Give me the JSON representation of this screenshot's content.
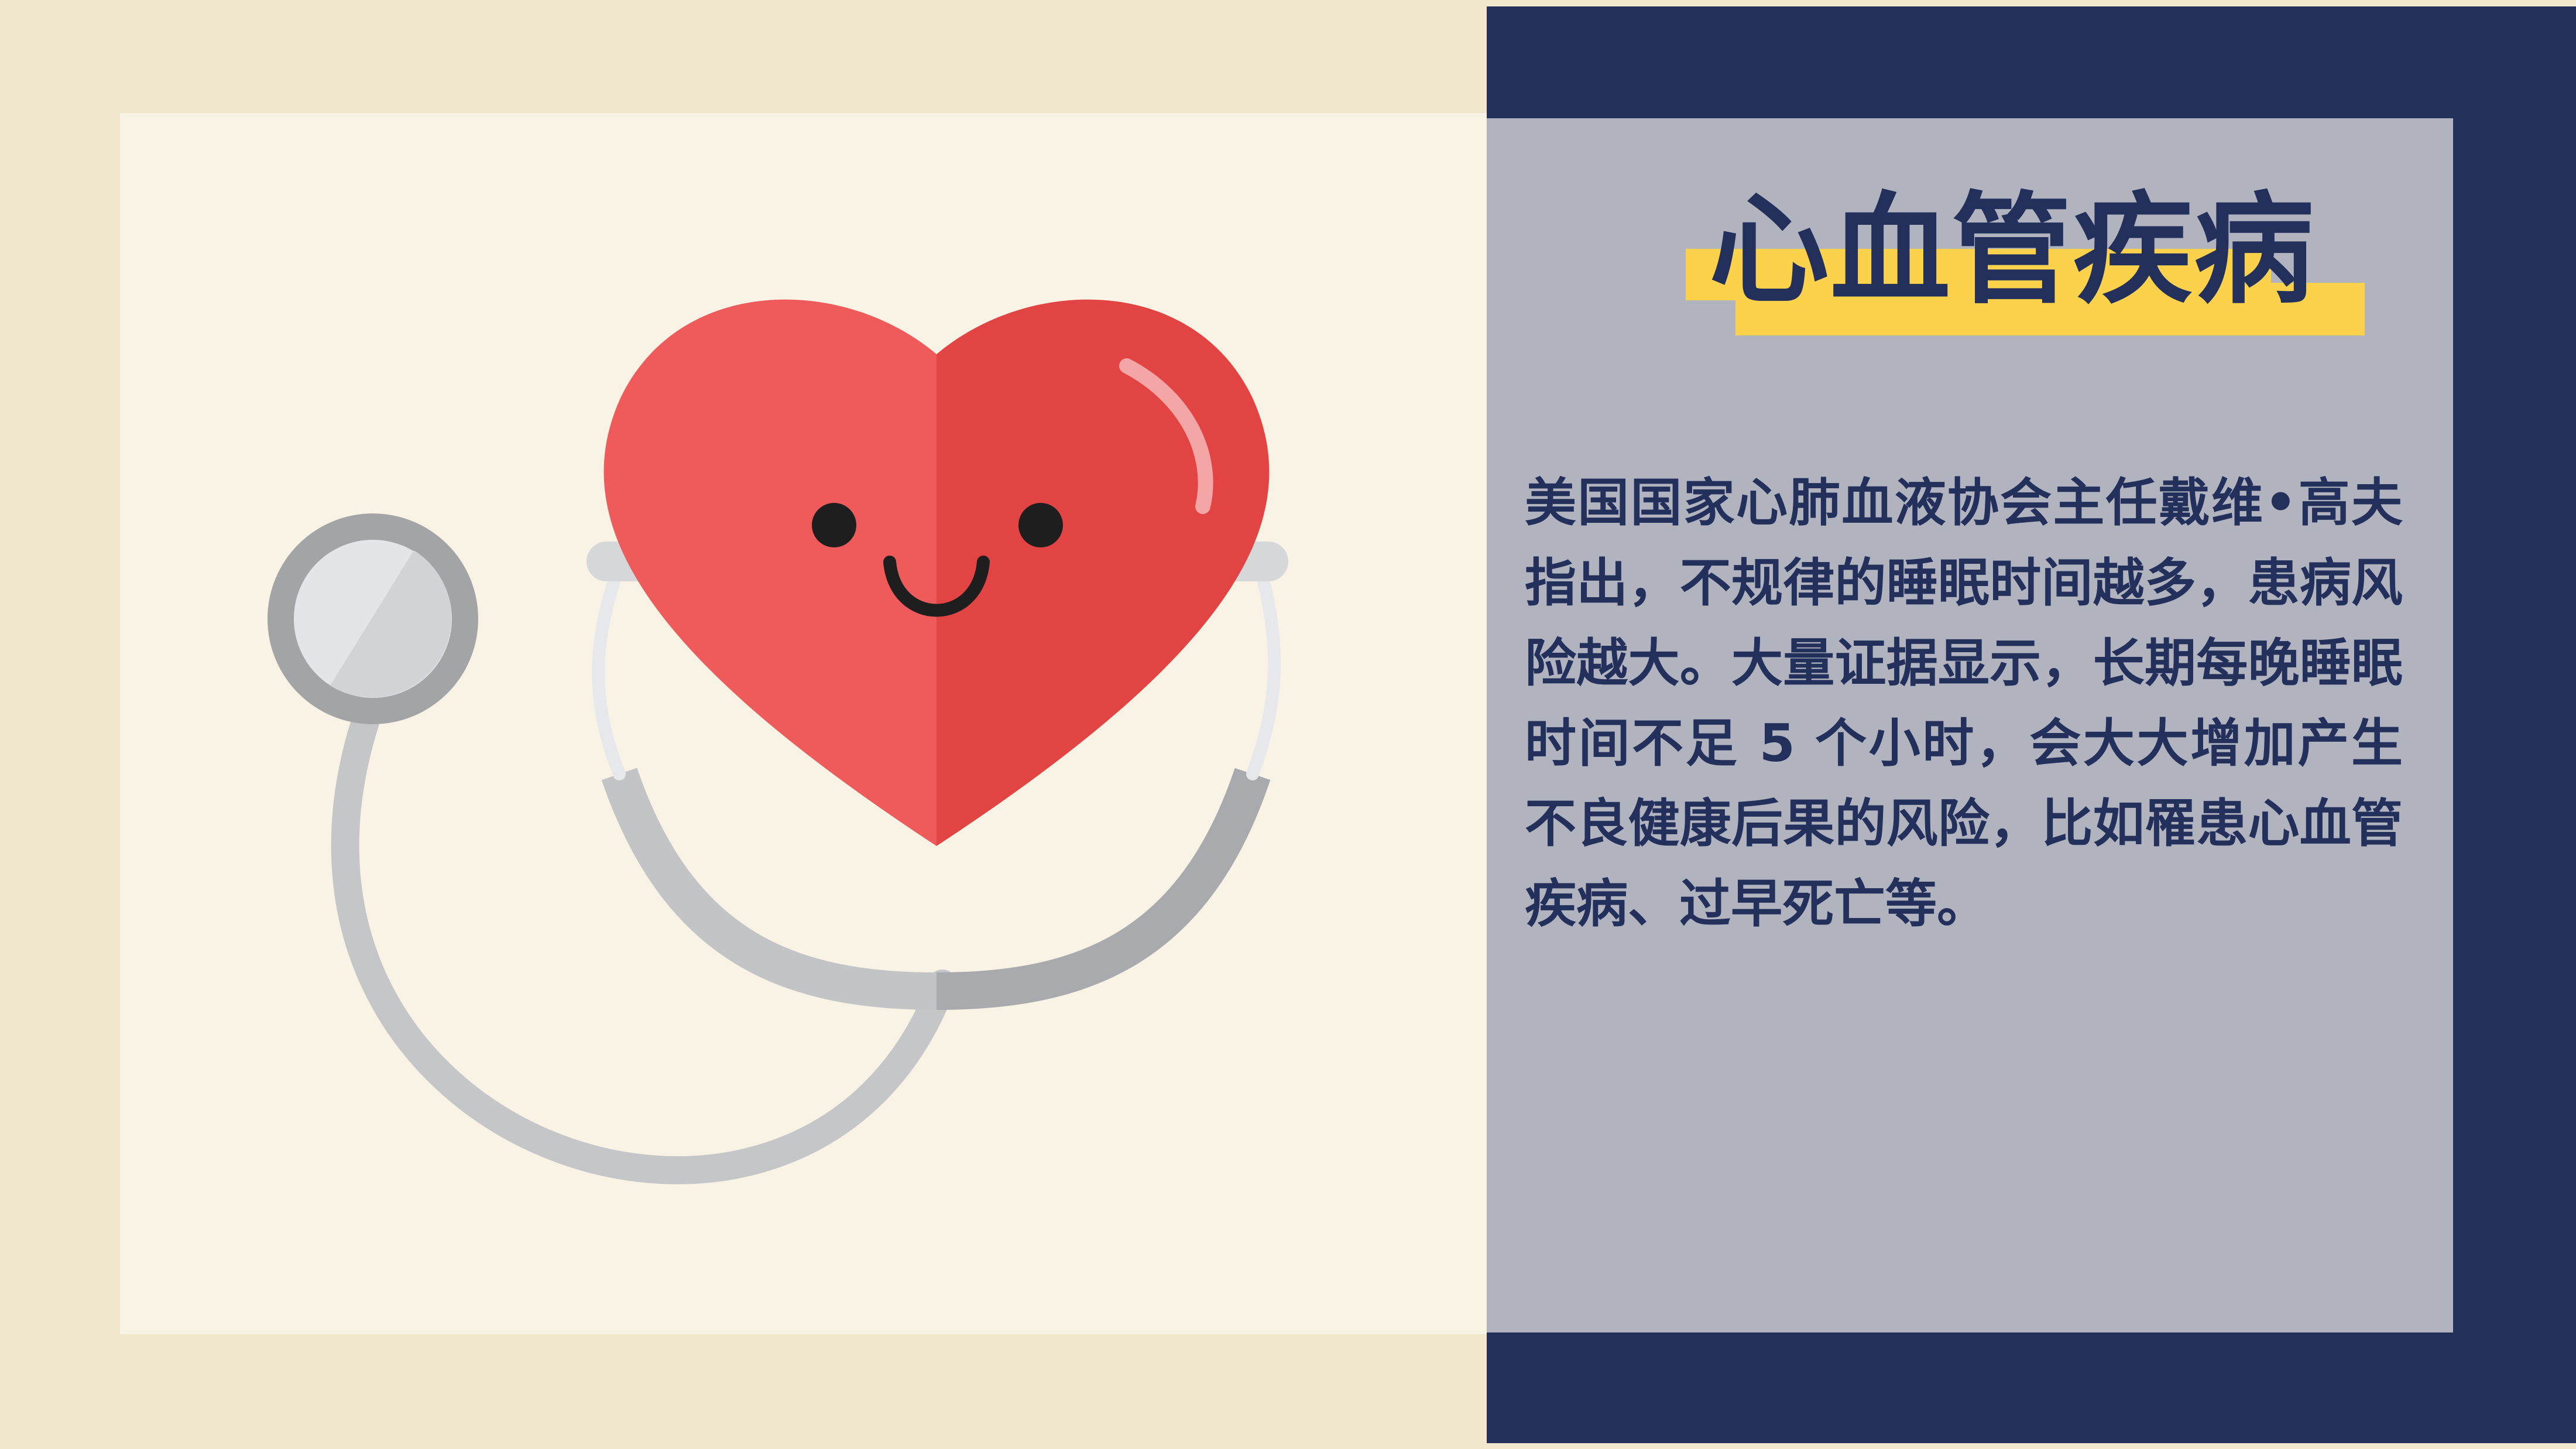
{
  "panel": {
    "title": "心血管疾病",
    "body": "美国国家心肺血液协会主任戴维•高夫指出，不规律的睡眠时间越多，患病风险越大。大量证据显示，长期每晚睡眠时间不足 5 个小时，会大大增加产生不良健康后果的风险，比如罹患心血管疾病、过早死亡等。"
  },
  "colors": {
    "navy": "#22305b",
    "cream": "#f1e7cd",
    "light_cream": "#f8f3e5",
    "panel_gray": "#b1b4bf",
    "highlight_yellow": "#fcd24c",
    "heart_red_light": "#ef5a5b",
    "heart_red_dark": "#e24444"
  },
  "icons": [
    "heart-icon",
    "stethoscope-icon"
  ]
}
